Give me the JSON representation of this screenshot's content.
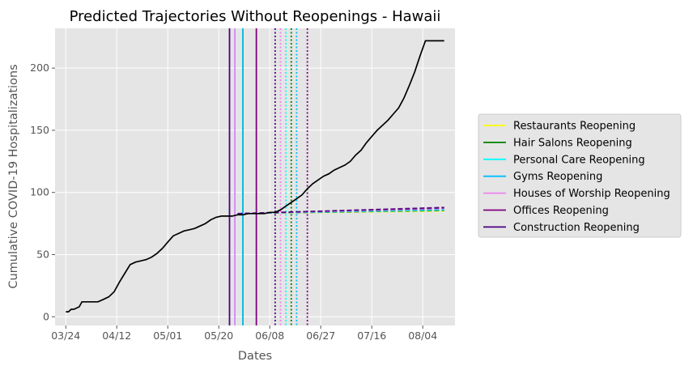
{
  "chart_data": {
    "type": "line",
    "title": "Predicted Trajectories Without Reopenings - Hawaii",
    "xlabel": "Dates",
    "ylabel": "Cumulative COVID-19 Hospitalizations",
    "x_ticks": [
      "03/24",
      "04/12",
      "05/01",
      "05/20",
      "06/08",
      "06/27",
      "07/16",
      "08/04"
    ],
    "ylim": [
      -7,
      232
    ],
    "y_ticks": [
      0,
      50,
      100,
      150,
      200
    ],
    "grid": true,
    "legend_placement": "right",
    "actual": {
      "x": [
        "03/24",
        "03/25",
        "03/26",
        "03/27",
        "03/28",
        "03/29",
        "03/30",
        "03/31",
        "04/01",
        "04/03",
        "04/05",
        "04/07",
        "04/09",
        "04/11",
        "04/13",
        "04/15",
        "04/17",
        "04/19",
        "04/21",
        "04/23",
        "04/25",
        "04/27",
        "04/29",
        "05/01",
        "05/03",
        "05/05",
        "05/07",
        "05/09",
        "05/11",
        "05/13",
        "05/15",
        "05/17",
        "05/19",
        "05/21",
        "05/23",
        "05/25",
        "05/27",
        "05/29",
        "05/31",
        "06/02",
        "06/04",
        "06/06",
        "06/08",
        "06/10",
        "06/12",
        "06/14",
        "06/16",
        "06/18",
        "06/20",
        "06/22",
        "06/24",
        "06/26",
        "06/28",
        "06/30",
        "07/02",
        "07/04",
        "07/06",
        "07/08",
        "07/10",
        "07/12",
        "07/14",
        "07/16",
        "07/18",
        "07/20",
        "07/22",
        "07/24",
        "07/26",
        "07/28",
        "07/30",
        "08/01",
        "08/03",
        "08/05",
        "08/07",
        "08/09",
        "08/11",
        "08/12"
      ],
      "y": [
        4,
        4,
        6,
        6,
        7,
        8,
        12,
        12,
        12,
        12,
        12,
        14,
        16,
        20,
        28,
        35,
        42,
        44,
        45,
        46,
        48,
        51,
        55,
        60,
        65,
        67,
        69,
        70,
        71,
        73,
        75,
        78,
        80,
        81,
        81,
        81,
        82,
        82,
        83,
        83,
        83,
        83,
        84,
        84,
        86,
        89,
        92,
        95,
        98,
        103,
        107,
        110,
        113,
        115,
        118,
        120,
        122,
        125,
        130,
        134,
        140,
        145,
        150,
        154,
        158,
        163,
        168,
        176,
        186,
        197,
        210,
        222,
        222,
        222,
        222,
        222
      ]
    },
    "series": [
      {
        "name": "Restaurants Reopening",
        "color": "#ffff00",
        "reopen": "05/29",
        "end": "06/18"
      },
      {
        "name": "Hair Salons Reopening",
        "color": "#008000",
        "reopen": "05/29",
        "end": "06/16"
      },
      {
        "name": "Personal Care Reopening",
        "color": "#00ffff",
        "reopen": "05/26",
        "end": "06/14"
      },
      {
        "name": "Gyms Reopening",
        "color": "#00bfff",
        "reopen": "05/29",
        "end": "06/18"
      },
      {
        "name": "Houses of Worship Reopening",
        "color": "#ee82ee",
        "reopen": "05/26",
        "end": "06/12"
      },
      {
        "name": "Offices Reopening",
        "color": "#800080",
        "reopen": "06/03",
        "end": "06/22"
      },
      {
        "name": "Construction Reopening",
        "color": "#4b0082",
        "reopen": "05/24",
        "end": "06/10"
      }
    ],
    "colors": {
      "panel": "#e5e5e5",
      "grid": "#ffffff",
      "actual_line": "#000000"
    }
  }
}
